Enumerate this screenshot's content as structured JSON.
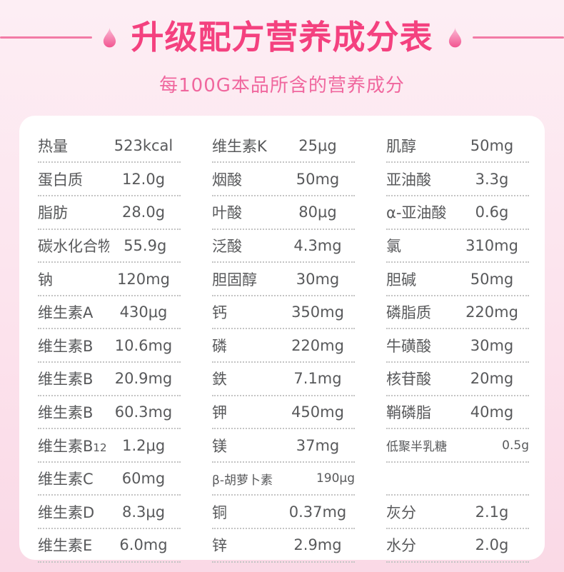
{
  "header": {
    "title": "升级配方营养成分表",
    "subtitle": "每100G本品所含的营养成分",
    "title_color": "#f4417f",
    "subtitle_color": "#f0679e",
    "line_color": "#f27ba6",
    "drop_icon": "water-drop",
    "drop_gradient_top": "#fbc0d8",
    "drop_gradient_bottom": "#f25490"
  },
  "table": {
    "text_color": "#58595b",
    "divider_color": "#c4c4c4",
    "card_color": "#ffffff",
    "columns": [
      {
        "rows": [
          {
            "label": "热量",
            "value": "523kcal"
          },
          {
            "label": "蛋白质",
            "value": "12.0g"
          },
          {
            "label": "脂肪",
            "value": "28.0g"
          },
          {
            "label": "碳水化合物",
            "value": "55.9g"
          },
          {
            "label": "钠",
            "value": "120mg"
          },
          {
            "label": "维生素A",
            "value": "430μg"
          },
          {
            "label": "维生素B",
            "value": "10.6mg"
          },
          {
            "label": "维生素B",
            "value": "20.9mg"
          },
          {
            "label": "维生素B",
            "value": "60.3mg"
          },
          {
            "label": "维生素B12",
            "value": "1.2μg"
          },
          {
            "label": "维生素C",
            "value": "60mg"
          },
          {
            "label": "维生素D",
            "value": "8.3μg"
          },
          {
            "label": "维生素E",
            "value": "6.0mg"
          }
        ]
      },
      {
        "rows": [
          {
            "label": "维生素K",
            "value": "25μg"
          },
          {
            "label": "烟酸",
            "value": "50mg"
          },
          {
            "label": "叶酸",
            "value": "80μg"
          },
          {
            "label": "泛酸",
            "value": "4.3mg"
          },
          {
            "label": "胆固醇",
            "value": "30mg"
          },
          {
            "label": "钙",
            "value": "350mg"
          },
          {
            "label": "磷",
            "value": "220mg"
          },
          {
            "label": "鉄",
            "value": "7.1mg"
          },
          {
            "label": "钾",
            "value": "450mg"
          },
          {
            "label": "镁",
            "value": "37mg"
          },
          {
            "label": "β-胡萝卜素",
            "value": "190μg",
            "compact": true
          },
          {
            "label": "铜",
            "value": "0.37mg"
          },
          {
            "label": "锌",
            "value": "2.9mg"
          }
        ]
      },
      {
        "rows": [
          {
            "label": "肌醇",
            "value": "50mg"
          },
          {
            "label": "亚油酸",
            "value": "3.3g"
          },
          {
            "label": "α-亚油酸",
            "value": "0.6g"
          },
          {
            "label": "氯",
            "value": "310mg"
          },
          {
            "label": "胆碱",
            "value": "50mg"
          },
          {
            "label": "磷脂质",
            "value": "220mg"
          },
          {
            "label": "牛磺酸",
            "value": "30mg"
          },
          {
            "label": "核苷酸",
            "value": "20mg"
          },
          {
            "label": "鞘磷脂",
            "value": "40mg"
          },
          {
            "label": "低聚半乳糖",
            "value": "0.5g",
            "compact": true
          },
          {
            "label": "",
            "value": "",
            "empty": true
          },
          {
            "label": "灰分",
            "value": "2.1g"
          },
          {
            "label": "水分",
            "value": "2.0g"
          }
        ]
      }
    ]
  }
}
